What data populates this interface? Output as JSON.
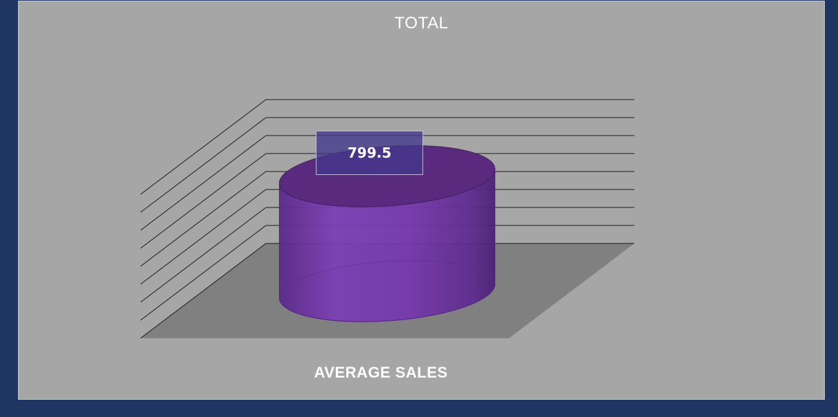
{
  "chart_data": {
    "type": "bar",
    "style": "3d-cylinder",
    "title": "TOTAL",
    "categories": [
      "AVERAGE SALES"
    ],
    "values": [
      799.5
    ],
    "data_labels": [
      "799.5"
    ],
    "xlabel": "",
    "ylabel": "",
    "ylim": [
      0,
      1000
    ],
    "grid": true,
    "legend": "none",
    "colors": {
      "bar": "#7a3fb0",
      "frame": "#1f3562",
      "plot_background": "#a6a6a6",
      "floor": "#808080"
    }
  }
}
